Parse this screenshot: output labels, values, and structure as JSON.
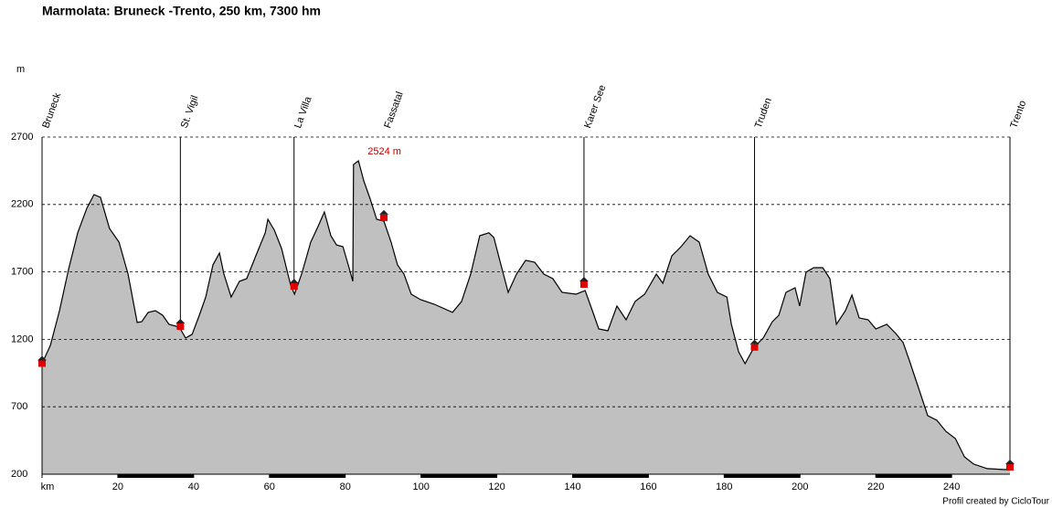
{
  "chart_data": {
    "type": "area",
    "title": "Marmolata: Bruneck -Trento, 250 km, 7300 hm",
    "y_label": "m",
    "footer": "Profil created by CicloTour",
    "color": "#c0c0c0",
    "grid": true,
    "xlim": [
      0,
      255.4
    ],
    "ylim": [
      200,
      2700
    ],
    "xticks": [
      {
        "value": 0,
        "label": "km"
      },
      20,
      40,
      60,
      80,
      100,
      120,
      140,
      160,
      180,
      200,
      220,
      240
    ],
    "yticks": [
      200,
      700,
      1200,
      1700,
      2200,
      2700
    ],
    "x": [
      0,
      2.2,
      4.6,
      7,
      9.4,
      11.8,
      13.7,
      15.4,
      17.8,
      20.3,
      22.7,
      25.1,
      26.3,
      28,
      29.9,
      31.8,
      33.5,
      36.2,
      37.9,
      39.6,
      41.5,
      43.2,
      45.1,
      46.8,
      48,
      49.9,
      52.1,
      54,
      56.4,
      58.9,
      59.6,
      61.3,
      63.2,
      65.6,
      66.6,
      68.5,
      70.9,
      72.8,
      74.5,
      76.2,
      77.7,
      79.4,
      81,
      82,
      82.2,
      83.5,
      84.9,
      86.6,
      88.3,
      90.2,
      92.1,
      93.8,
      95.5,
      97.4,
      99.9,
      103.5,
      108.3,
      110.7,
      113.1,
      115.5,
      117.9,
      119.2,
      121.1,
      123,
      125.2,
      127.6,
      130,
      132.4,
      134.8,
      137.2,
      140.9,
      143.3,
      145.2,
      146.9,
      149.3,
      151.7,
      154.1,
      156.5,
      159,
      162.1,
      163.8,
      166.2,
      168.6,
      171,
      173.4,
      175.8,
      178.2,
      180.7,
      181.9,
      183.8,
      185.5,
      187.9,
      190.3,
      192.7,
      194.4,
      196.3,
      198.7,
      199.9,
      201.6,
      203.6,
      206,
      207.9,
      209.6,
      212,
      213.7,
      215.6,
      218,
      220,
      222.9,
      225.3,
      227.2,
      228.9,
      231.3,
      233.7,
      236.1,
      238.5,
      241,
      243.4,
      245.8,
      249.4,
      254.2,
      255.4
    ],
    "values": [
      1020,
      1155,
      1413,
      1718,
      1990,
      2170,
      2273,
      2253,
      2022,
      1921,
      1684,
      1325,
      1331,
      1400,
      1413,
      1379,
      1311,
      1291,
      1210,
      1237,
      1379,
      1514,
      1752,
      1840,
      1684,
      1514,
      1630,
      1650,
      1819,
      1990,
      2090,
      2009,
      1873,
      1602,
      1535,
      1684,
      1921,
      2036,
      2144,
      1968,
      1900,
      1887,
      1731,
      1630,
      2497,
      2524,
      2375,
      2239,
      2090,
      2077,
      1921,
      1752,
      1684,
      1535,
      1494,
      1460,
      1400,
      1481,
      1684,
      1968,
      1990,
      1955,
      1752,
      1548,
      1684,
      1786,
      1772,
      1684,
      1650,
      1548,
      1535,
      1562,
      1413,
      1277,
      1264,
      1447,
      1345,
      1481,
      1535,
      1684,
      1616,
      1819,
      1887,
      1968,
      1921,
      1684,
      1548,
      1514,
      1311,
      1108,
      1020,
      1142,
      1210,
      1331,
      1379,
      1548,
      1582,
      1447,
      1698,
      1731,
      1731,
      1650,
      1311,
      1413,
      1528,
      1359,
      1345,
      1277,
      1311,
      1243,
      1176,
      1040,
      837,
      634,
      600,
      518,
      464,
      329,
      275,
      241,
      234,
      247
    ],
    "peak_label": "2524 m",
    "places": [
      {
        "name": "Bruneck",
        "km": 0,
        "elevation": 1030,
        "marker_line": true
      },
      {
        "name": "St. Vigil",
        "km": 36.5,
        "elevation": 1304,
        "marker_line": true
      },
      {
        "name": "La Villa",
        "km": 66.5,
        "elevation": 1602,
        "marker_line": true
      },
      {
        "name": "Fassatal",
        "km": 90.2,
        "elevation": 2111,
        "marker_line": false
      },
      {
        "name": "Karer See",
        "km": 143,
        "elevation": 1616,
        "marker_line": true
      },
      {
        "name": "Truden",
        "km": 188,
        "elevation": 1150,
        "marker_line": true
      },
      {
        "name": "Trento",
        "km": 255.4,
        "elevation": 261,
        "marker_line": true
      }
    ]
  }
}
